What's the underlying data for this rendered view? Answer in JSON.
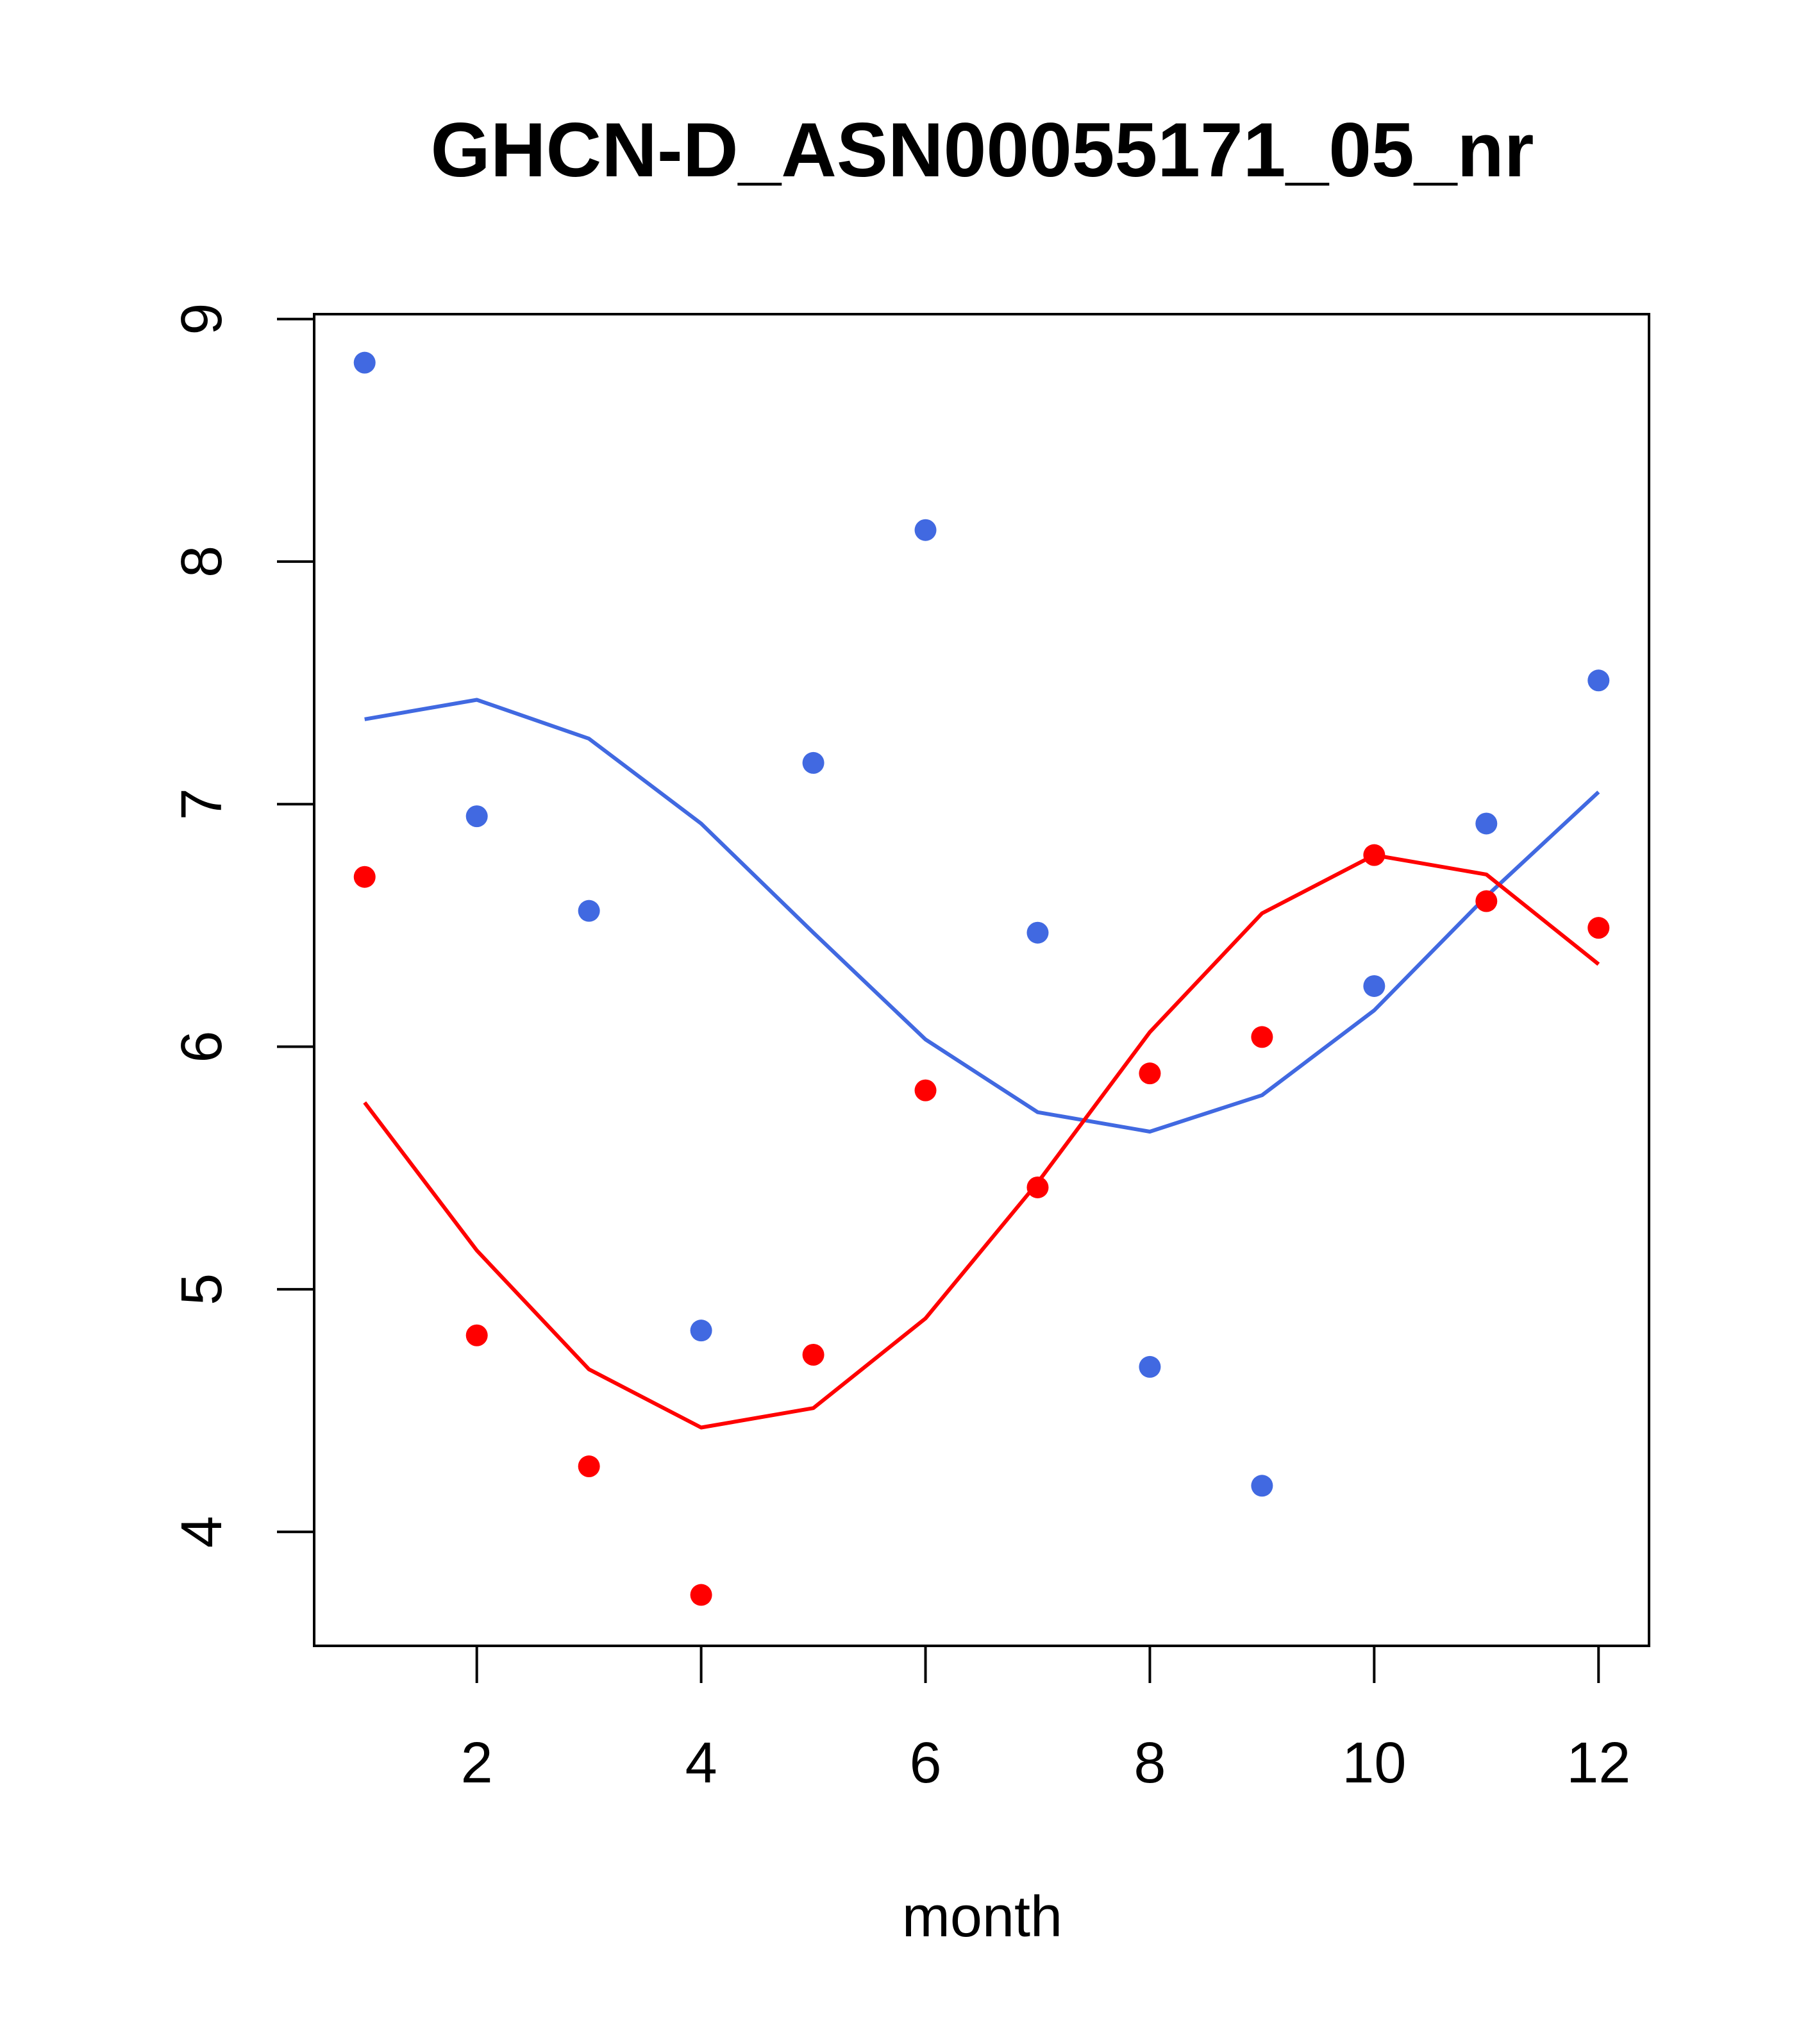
{
  "chart_data": {
    "type": "line",
    "title": "GHCN-D_ASN00055171_05_nr",
    "xlabel": "month",
    "ylabel": "",
    "xlim": [
      0.55,
      12.45
    ],
    "ylim": [
      3.53,
      9.02
    ],
    "xticks": [
      2,
      4,
      6,
      8,
      10,
      12
    ],
    "yticks": [
      4,
      5,
      6,
      7,
      8,
      9
    ],
    "grid": false,
    "x": [
      1,
      2,
      3,
      4,
      5,
      6,
      7,
      8,
      9,
      10,
      11,
      12
    ],
    "series": [
      {
        "color": "#4169E1",
        "points": [
          8.82,
          6.95,
          6.56,
          4.83,
          7.17,
          8.13,
          6.47,
          4.68,
          4.19,
          6.25,
          6.92,
          7.51
        ],
        "line": [
          7.35,
          7.43,
          7.27,
          6.92,
          6.47,
          6.03,
          5.73,
          5.65,
          5.8,
          6.15,
          6.62,
          7.05
        ]
      },
      {
        "color": "#FF0000",
        "points": [
          6.7,
          4.81,
          4.27,
          3.74,
          4.73,
          5.82,
          5.42,
          5.89,
          6.04,
          6.79,
          6.6,
          6.49
        ],
        "line": [
          5.77,
          5.16,
          4.67,
          4.43,
          4.51,
          4.88,
          5.44,
          6.06,
          6.55,
          6.79,
          6.71,
          6.34
        ]
      }
    ]
  }
}
